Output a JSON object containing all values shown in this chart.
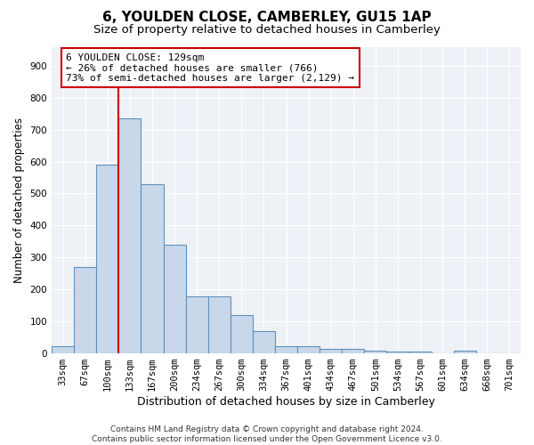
{
  "title": "6, YOULDEN CLOSE, CAMBERLEY, GU15 1AP",
  "subtitle": "Size of property relative to detached houses in Camberley",
  "xlabel": "Distribution of detached houses by size in Camberley",
  "ylabel": "Number of detached properties",
  "bin_labels": [
    "33sqm",
    "67sqm",
    "100sqm",
    "133sqm",
    "167sqm",
    "200sqm",
    "234sqm",
    "267sqm",
    "300sqm",
    "334sqm",
    "367sqm",
    "401sqm",
    "434sqm",
    "467sqm",
    "501sqm",
    "534sqm",
    "567sqm",
    "601sqm",
    "634sqm",
    "668sqm",
    "701sqm"
  ],
  "bar_values": [
    22,
    270,
    590,
    735,
    530,
    338,
    178,
    178,
    118,
    68,
    22,
    22,
    14,
    12,
    8,
    5,
    5,
    0,
    8,
    0,
    0
  ],
  "bar_color": "#c8d8ea",
  "bar_edge_color": "#6090bb",
  "bar_edge_width": 0.8,
  "vline_index": 3,
  "vline_color": "#cc0000",
  "annotation_text_line1": "6 YOULDEN CLOSE: 129sqm",
  "annotation_text_line2": "← 26% of detached houses are smaller (766)",
  "annotation_text_line3": "73% of semi-detached houses are larger (2,129) →",
  "ylim": [
    0,
    960
  ],
  "yticks": [
    0,
    100,
    200,
    300,
    400,
    500,
    600,
    700,
    800,
    900
  ],
  "footer_line1": "Contains HM Land Registry data © Crown copyright and database right 2024.",
  "footer_line2": "Contains public sector information licensed under the Open Government Licence v3.0.",
  "bg_color": "#eef2f7",
  "grid_color": "#ffffff",
  "title_fontsize": 11,
  "subtitle_fontsize": 9.5,
  "xlabel_fontsize": 9,
  "ylabel_fontsize": 8.5,
  "tick_fontsize": 7.5,
  "annotation_fontsize": 8,
  "footer_fontsize": 6.5
}
